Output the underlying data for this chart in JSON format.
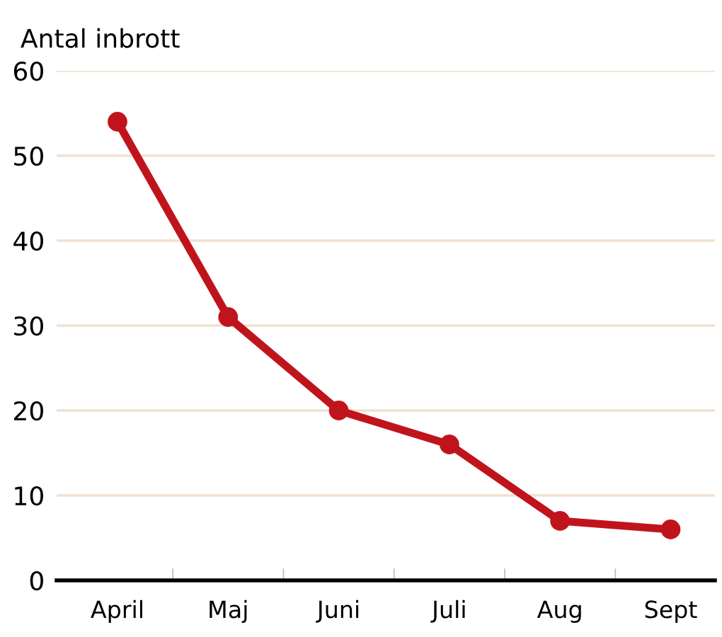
{
  "chart_data": {
    "type": "line",
    "ylabel": "Antal inbrott",
    "categories": [
      "April",
      "Maj",
      "Juni",
      "Juli",
      "Aug",
      "Sept"
    ],
    "series": [
      {
        "color": "#c0141c",
        "values": [
          54,
          31,
          20,
          16,
          7,
          6
        ]
      }
    ],
    "ylim": [
      0,
      60
    ],
    "yticks": [
      0,
      10,
      20,
      30,
      40,
      50,
      60
    ],
    "grid": "y",
    "marker": "circle",
    "line_style": "solid",
    "legend": false
  }
}
